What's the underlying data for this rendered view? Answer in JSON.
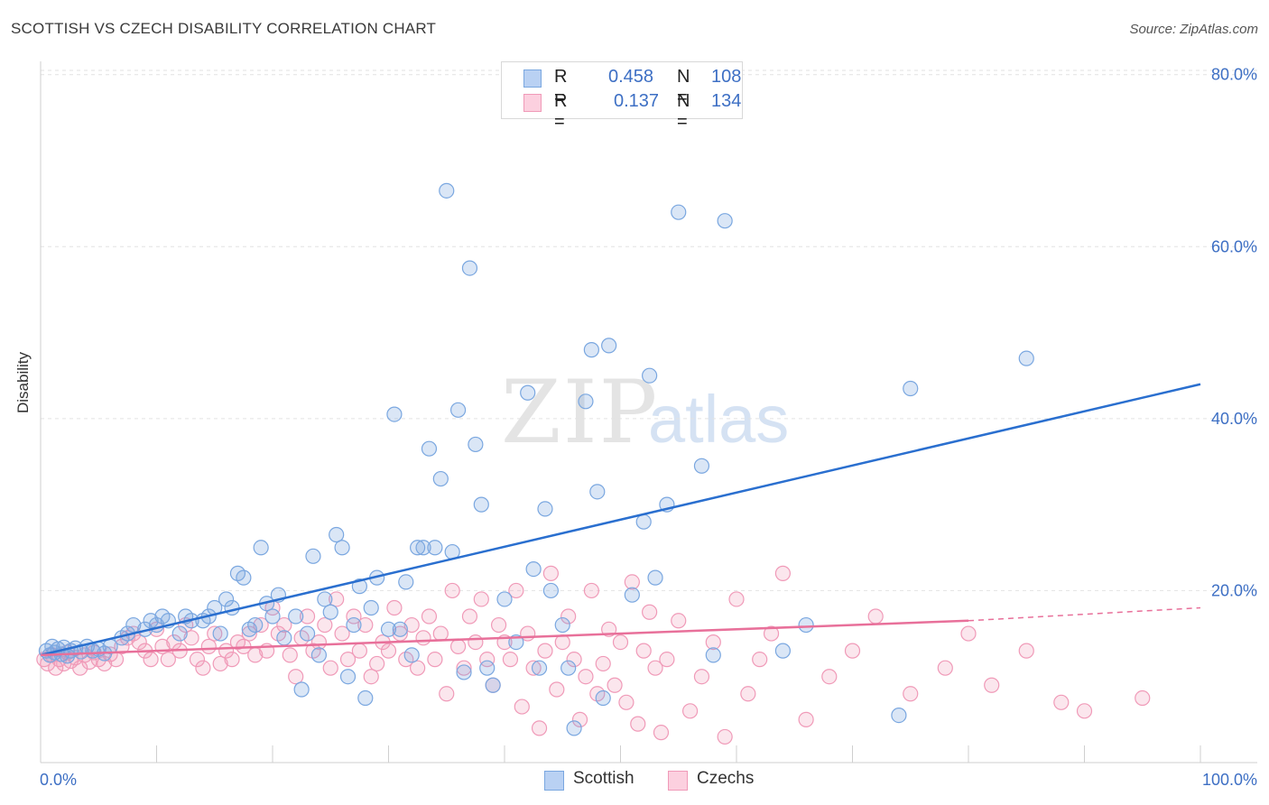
{
  "header": {
    "title": "SCOTTISH VS CZECH DISABILITY CORRELATION CHART",
    "source": "Source: ZipAtlas.com"
  },
  "legend": {
    "scottish": {
      "r_label": "R =",
      "r_value": "0.458",
      "n_label": "N =",
      "n_value": "108"
    },
    "czechs": {
      "r_label": "R =",
      "r_value": "0.137",
      "n_label": "N =",
      "n_value": "134"
    }
  },
  "watermark": {
    "zip": "ZIP",
    "atlas": "atlas"
  },
  "chart_data": {
    "type": "scatter",
    "title": "SCOTTISH VS CZECH DISABILITY CORRELATION CHART",
    "ylabel": "Disability",
    "xlabel": "",
    "xlim": [
      0,
      100
    ],
    "ylim": [
      0,
      80
    ],
    "x_tick_labels": [
      "0.0%",
      "100.0%"
    ],
    "y_tick_labels": [
      "20.0%",
      "40.0%",
      "60.0%",
      "80.0%"
    ],
    "y_ticks": [
      20,
      40,
      60,
      80
    ],
    "grid": true,
    "colors": {
      "scottish": "#7aa7e0",
      "scottish_line": "#2a6fcf",
      "czechs": "#f09ab8",
      "czechs_line": "#e8709a",
      "axis_text": "#3d6fc4"
    },
    "series": [
      {
        "name": "Scottish",
        "trend": {
          "x": [
            0,
            100
          ],
          "y": [
            12.5,
            44.0
          ]
        },
        "points": [
          [
            0.5,
            13
          ],
          [
            0.8,
            12.5
          ],
          [
            1,
            13.5
          ],
          [
            1.2,
            12.8
          ],
          [
            1.5,
            13.2
          ],
          [
            1.8,
            12.6
          ],
          [
            2,
            13.4
          ],
          [
            2.3,
            12.4
          ],
          [
            2.6,
            13
          ],
          [
            3,
            13.3
          ],
          [
            3.5,
            12.9
          ],
          [
            4,
            13.5
          ],
          [
            4.5,
            13
          ],
          [
            5,
            13.2
          ],
          [
            5.5,
            12.7
          ],
          [
            6,
            13.5
          ],
          [
            7,
            14.5
          ],
          [
            7.5,
            15
          ],
          [
            8,
            16
          ],
          [
            9,
            15.5
          ],
          [
            9.5,
            16.5
          ],
          [
            10,
            16
          ],
          [
            10.5,
            17
          ],
          [
            11,
            16.5
          ],
          [
            12,
            15
          ],
          [
            12.5,
            17
          ],
          [
            13,
            16.5
          ],
          [
            14,
            16.5
          ],
          [
            14.5,
            17
          ],
          [
            15,
            18
          ],
          [
            15.5,
            15
          ],
          [
            16,
            19
          ],
          [
            16.5,
            18
          ],
          [
            17,
            22
          ],
          [
            17.5,
            21.5
          ],
          [
            18,
            15.5
          ],
          [
            18.5,
            16
          ],
          [
            19,
            25
          ],
          [
            19.5,
            18.5
          ],
          [
            20,
            17
          ],
          [
            20.5,
            19.5
          ],
          [
            21,
            14.5
          ],
          [
            22,
            17
          ],
          [
            22.5,
            8.5
          ],
          [
            23,
            15
          ],
          [
            23.5,
            24
          ],
          [
            24,
            12.5
          ],
          [
            24.5,
            19
          ],
          [
            25,
            17.5
          ],
          [
            25.5,
            26.5
          ],
          [
            26,
            25
          ],
          [
            26.5,
            10
          ],
          [
            27,
            16
          ],
          [
            27.5,
            20.5
          ],
          [
            28,
            7.5
          ],
          [
            28.5,
            18
          ],
          [
            29,
            21.5
          ],
          [
            30,
            15.5
          ],
          [
            30.5,
            40.5
          ],
          [
            31,
            15.5
          ],
          [
            31.5,
            21
          ],
          [
            32,
            12.5
          ],
          [
            32.5,
            25
          ],
          [
            33,
            25
          ],
          [
            33.5,
            36.5
          ],
          [
            34,
            25
          ],
          [
            34.5,
            33
          ],
          [
            35,
            66.5
          ],
          [
            35.5,
            24.5
          ],
          [
            36,
            41
          ],
          [
            36.5,
            10.5
          ],
          [
            37,
            57.5
          ],
          [
            37.5,
            37
          ],
          [
            38,
            30
          ],
          [
            38.5,
            11
          ],
          [
            39,
            9
          ],
          [
            40,
            19
          ],
          [
            41,
            14
          ],
          [
            42,
            43
          ],
          [
            42.5,
            22.5
          ],
          [
            43,
            11
          ],
          [
            43.5,
            29.5
          ],
          [
            44,
            20
          ],
          [
            45,
            16
          ],
          [
            45.5,
            11
          ],
          [
            46,
            4
          ],
          [
            47,
            42
          ],
          [
            47.5,
            48
          ],
          [
            48,
            31.5
          ],
          [
            48.5,
            7.5
          ],
          [
            49,
            48.5
          ],
          [
            51,
            19.5
          ],
          [
            52,
            28
          ],
          [
            52.5,
            45
          ],
          [
            53,
            21.5
          ],
          [
            54,
            30
          ],
          [
            55,
            64
          ],
          [
            57,
            34.5
          ],
          [
            58,
            12.5
          ],
          [
            59,
            63
          ],
          [
            64,
            13
          ],
          [
            66,
            16
          ],
          [
            74,
            5.5
          ],
          [
            75,
            43.5
          ],
          [
            85,
            47
          ]
        ]
      },
      {
        "name": "Czechs",
        "trend": {
          "x": [
            0,
            80
          ],
          "y": [
            12.5,
            16.5
          ],
          "dash_to": [
            100,
            18.0
          ]
        },
        "points": [
          [
            0.3,
            12
          ],
          [
            0.6,
            11.5
          ],
          [
            1,
            12.5
          ],
          [
            1.3,
            11
          ],
          [
            1.6,
            12
          ],
          [
            2,
            11.5
          ],
          [
            2.3,
            12.8
          ],
          [
            2.6,
            11.8
          ],
          [
            3,
            12.2
          ],
          [
            3.4,
            11
          ],
          [
            3.8,
            12.5
          ],
          [
            4.2,
            11.7
          ],
          [
            4.6,
            12.8
          ],
          [
            5,
            12
          ],
          [
            5.5,
            11.5
          ],
          [
            6,
            12.6
          ],
          [
            6.5,
            12
          ],
          [
            7,
            13.5
          ],
          [
            7.5,
            14.5
          ],
          [
            8,
            15
          ],
          [
            8.5,
            14
          ],
          [
            9,
            13
          ],
          [
            9.5,
            12
          ],
          [
            10,
            15.5
          ],
          [
            10.5,
            13.5
          ],
          [
            11,
            12
          ],
          [
            11.5,
            14
          ],
          [
            12,
            13
          ],
          [
            12.5,
            16
          ],
          [
            13,
            14.5
          ],
          [
            13.5,
            12
          ],
          [
            14,
            11
          ],
          [
            14.5,
            13.5
          ],
          [
            15,
            15
          ],
          [
            15.5,
            11.5
          ],
          [
            16,
            13
          ],
          [
            16.5,
            12
          ],
          [
            17,
            14
          ],
          [
            17.5,
            13.5
          ],
          [
            18,
            15
          ],
          [
            18.5,
            12.5
          ],
          [
            19,
            16
          ],
          [
            19.5,
            13
          ],
          [
            20,
            18
          ],
          [
            20.5,
            15
          ],
          [
            21,
            16
          ],
          [
            21.5,
            12.5
          ],
          [
            22,
            10
          ],
          [
            22.5,
            14.5
          ],
          [
            23,
            17
          ],
          [
            23.5,
            13
          ],
          [
            24,
            14
          ],
          [
            24.5,
            16
          ],
          [
            25,
            11
          ],
          [
            25.5,
            19
          ],
          [
            26,
            15
          ],
          [
            26.5,
            12
          ],
          [
            27,
            17
          ],
          [
            27.5,
            13
          ],
          [
            28,
            16
          ],
          [
            28.5,
            10
          ],
          [
            29,
            11.5
          ],
          [
            29.5,
            14
          ],
          [
            30,
            13
          ],
          [
            30.5,
            18
          ],
          [
            31,
            15
          ],
          [
            31.5,
            12
          ],
          [
            32,
            16
          ],
          [
            32.5,
            11
          ],
          [
            33,
            14.5
          ],
          [
            33.5,
            17
          ],
          [
            34,
            12
          ],
          [
            34.5,
            15
          ],
          [
            35,
            8
          ],
          [
            35.5,
            20
          ],
          [
            36,
            13.5
          ],
          [
            36.5,
            11
          ],
          [
            37,
            17
          ],
          [
            37.5,
            14
          ],
          [
            38,
            19
          ],
          [
            38.5,
            12
          ],
          [
            39,
            9
          ],
          [
            39.5,
            16
          ],
          [
            40,
            14
          ],
          [
            40.5,
            12
          ],
          [
            41,
            20
          ],
          [
            41.5,
            6.5
          ],
          [
            42,
            15
          ],
          [
            42.5,
            11
          ],
          [
            43,
            4
          ],
          [
            43.5,
            13
          ],
          [
            44,
            22
          ],
          [
            44.5,
            8.5
          ],
          [
            45,
            14
          ],
          [
            45.5,
            17
          ],
          [
            46,
            12
          ],
          [
            46.5,
            5
          ],
          [
            47,
            10
          ],
          [
            47.5,
            20
          ],
          [
            48,
            8
          ],
          [
            48.5,
            11.5
          ],
          [
            49,
            15.5
          ],
          [
            49.5,
            9
          ],
          [
            50,
            14
          ],
          [
            50.5,
            7
          ],
          [
            51,
            21
          ],
          [
            51.5,
            4.5
          ],
          [
            52,
            13
          ],
          [
            52.5,
            17.5
          ],
          [
            53,
            11
          ],
          [
            53.5,
            3.5
          ],
          [
            54,
            12
          ],
          [
            55,
            16.5
          ],
          [
            56,
            6
          ],
          [
            57,
            10
          ],
          [
            58,
            14
          ],
          [
            59,
            3
          ],
          [
            60,
            19
          ],
          [
            61,
            8
          ],
          [
            62,
            12
          ],
          [
            63,
            15
          ],
          [
            64,
            22
          ],
          [
            66,
            5
          ],
          [
            68,
            10
          ],
          [
            70,
            13
          ],
          [
            72,
            17
          ],
          [
            75,
            8
          ],
          [
            78,
            11
          ],
          [
            80,
            15
          ],
          [
            82,
            9
          ],
          [
            85,
            13
          ],
          [
            88,
            7
          ],
          [
            90,
            6
          ],
          [
            95,
            7.5
          ]
        ]
      }
    ]
  }
}
